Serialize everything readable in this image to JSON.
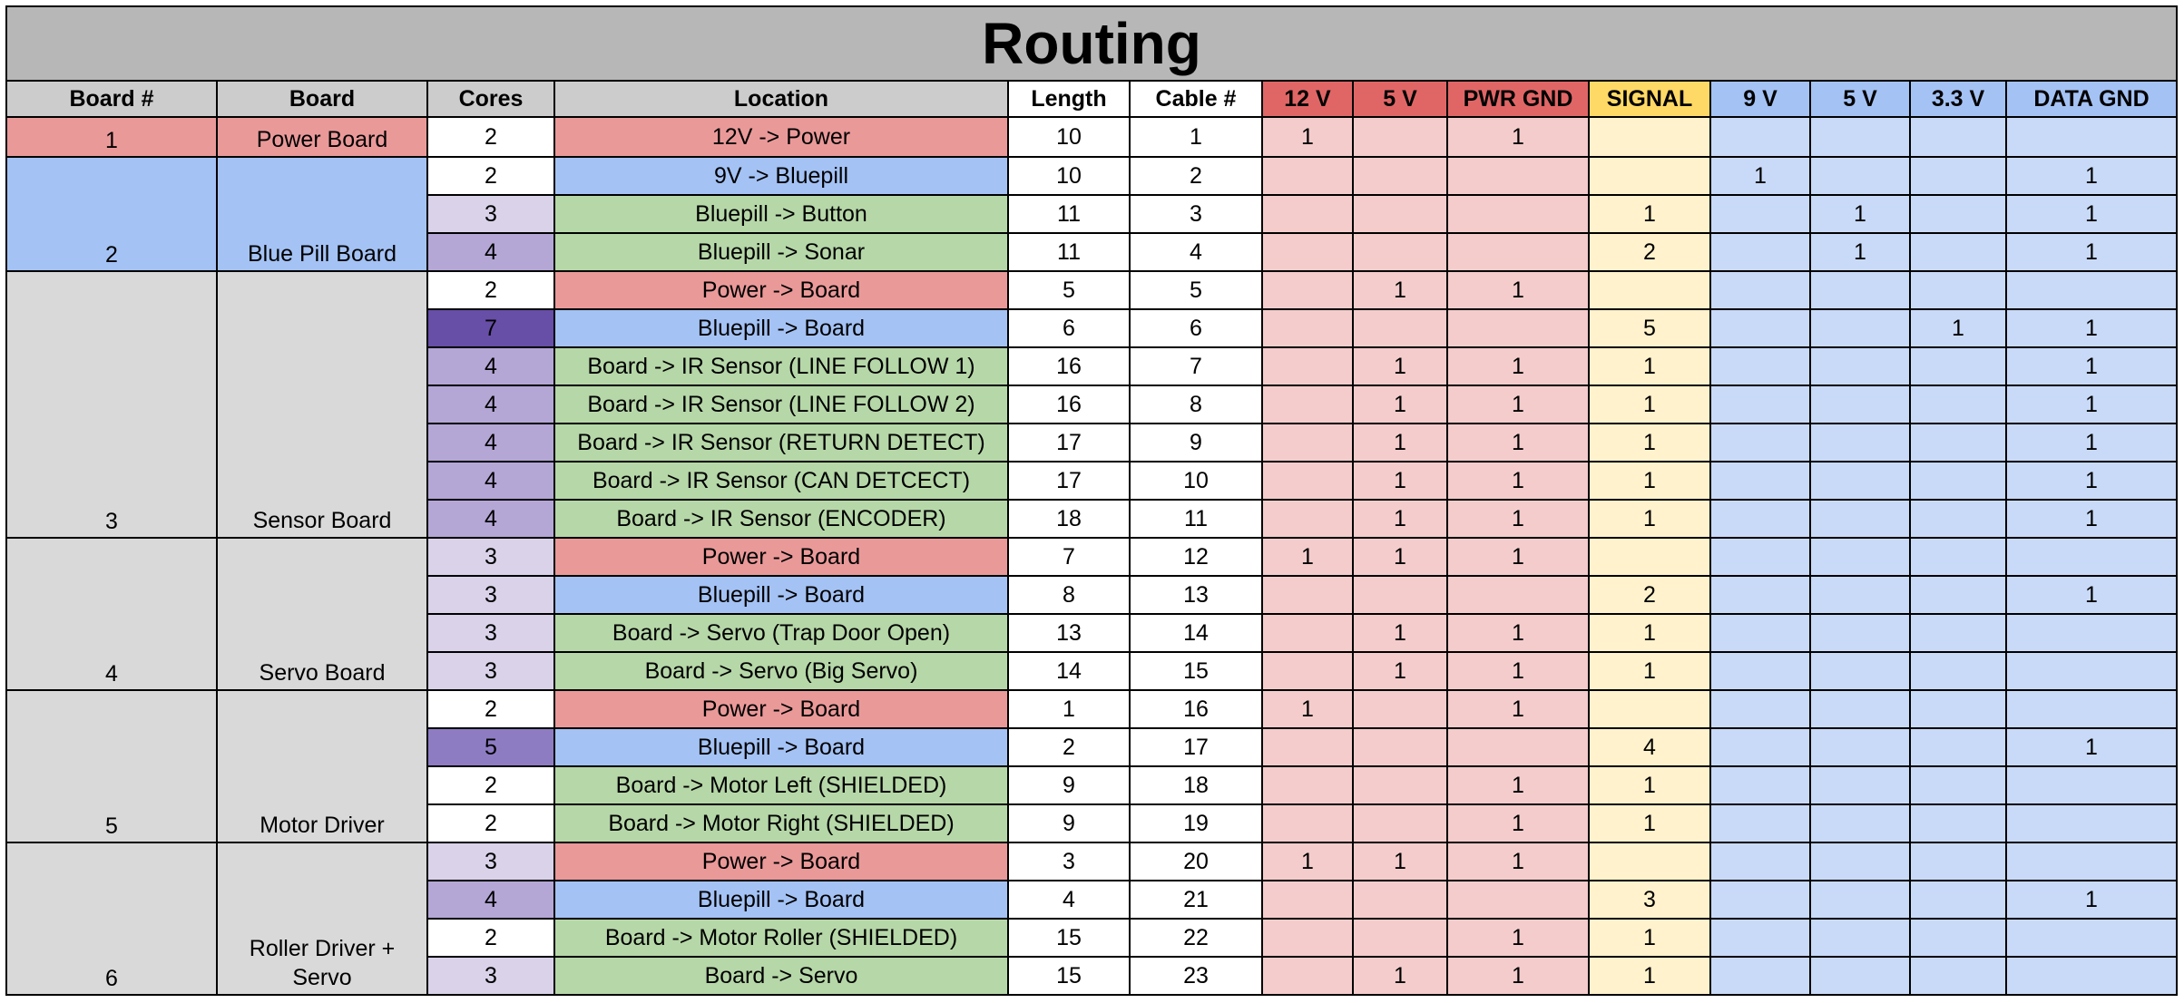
{
  "title": "Routing",
  "columns": [
    "Board #",
    "Board",
    "Cores",
    "Location",
    "Length",
    "Cable #",
    "12 V",
    "5 V",
    "PWR GND",
    "SIGNAL",
    "9 V",
    "5 V",
    "3.3 V",
    "DATA GND"
  ],
  "colors": {
    "power_red": "#ea9999",
    "bluepill_blue": "#a4c2f4",
    "signal_green": "#b6d7a8",
    "group_gray": "#d9d9d9",
    "power_header": "#e06666",
    "signal_header": "#ffd966",
    "data_header": "#a4c2f4",
    "power_cells": "#f4cccc",
    "signal_cells": "#fff2cc",
    "data_cells": "#c9daf8"
  },
  "groups": [
    {
      "board_num": "1",
      "board": "Power Board",
      "color": "#ea9999",
      "rows": [
        {
          "cores": "2",
          "cores_color": "#ffffff",
          "location": "12V -> Power",
          "loc_color": "#ea9999",
          "length": "10",
          "cable": "1",
          "v12": "1",
          "v5": "",
          "pwr_gnd": "1",
          "signal": "",
          "v9": "",
          "d5v": "",
          "v33": "",
          "data_gnd": ""
        }
      ]
    },
    {
      "board_num": "2",
      "board": "Blue Pill Board",
      "color": "#a4c2f4",
      "rows": [
        {
          "cores": "2",
          "cores_color": "#ffffff",
          "location": "9V -> Bluepill",
          "loc_color": "#a4c2f4",
          "length": "10",
          "cable": "2",
          "v12": "",
          "v5": "",
          "pwr_gnd": "",
          "signal": "",
          "v9": "1",
          "d5v": "",
          "v33": "",
          "data_gnd": "1"
        },
        {
          "cores": "3",
          "cores_color": "#d9d2e9",
          "location": "Bluepill -> Button",
          "loc_color": "#b6d7a8",
          "length": "11",
          "cable": "3",
          "v12": "",
          "v5": "",
          "pwr_gnd": "",
          "signal": "1",
          "v9": "",
          "d5v": "1",
          "v33": "",
          "data_gnd": "1"
        },
        {
          "cores": "4",
          "cores_color": "#b4a7d6",
          "location": "Bluepill -> Sonar",
          "loc_color": "#b6d7a8",
          "length": "11",
          "cable": "4",
          "v12": "",
          "v5": "",
          "pwr_gnd": "",
          "signal": "2",
          "v9": "",
          "d5v": "1",
          "v33": "",
          "data_gnd": "1"
        }
      ]
    },
    {
      "board_num": "3",
      "board": "Sensor Board",
      "color": "#d9d9d9",
      "rows": [
        {
          "cores": "2",
          "cores_color": "#ffffff",
          "location": "Power -> Board",
          "loc_color": "#ea9999",
          "length": "5",
          "cable": "5",
          "v12": "",
          "v5": "1",
          "pwr_gnd": "1",
          "signal": "",
          "v9": "",
          "d5v": "",
          "v33": "",
          "data_gnd": ""
        },
        {
          "cores": "7",
          "cores_color": "#674ea7",
          "location": "Bluepill -> Board",
          "loc_color": "#a4c2f4",
          "length": "6",
          "cable": "6",
          "v12": "",
          "v5": "",
          "pwr_gnd": "",
          "signal": "5",
          "v9": "",
          "d5v": "",
          "v33": "1",
          "data_gnd": "1"
        },
        {
          "cores": "4",
          "cores_color": "#b4a7d6",
          "location": "Board -> IR Sensor (LINE FOLLOW 1)",
          "loc_color": "#b6d7a8",
          "length": "16",
          "cable": "7",
          "v12": "",
          "v5": "1",
          "pwr_gnd": "1",
          "signal": "1",
          "v9": "",
          "d5v": "",
          "v33": "",
          "data_gnd": "1"
        },
        {
          "cores": "4",
          "cores_color": "#b4a7d6",
          "location": "Board -> IR Sensor (LINE FOLLOW 2)",
          "loc_color": "#b6d7a8",
          "length": "16",
          "cable": "8",
          "v12": "",
          "v5": "1",
          "pwr_gnd": "1",
          "signal": "1",
          "v9": "",
          "d5v": "",
          "v33": "",
          "data_gnd": "1"
        },
        {
          "cores": "4",
          "cores_color": "#b4a7d6",
          "location": "Board -> IR Sensor (RETURN DETECT)",
          "loc_color": "#b6d7a8",
          "length": "17",
          "cable": "9",
          "v12": "",
          "v5": "1",
          "pwr_gnd": "1",
          "signal": "1",
          "v9": "",
          "d5v": "",
          "v33": "",
          "data_gnd": "1"
        },
        {
          "cores": "4",
          "cores_color": "#b4a7d6",
          "location": "Board -> IR Sensor (CAN DETCECT)",
          "loc_color": "#b6d7a8",
          "length": "17",
          "cable": "10",
          "v12": "",
          "v5": "1",
          "pwr_gnd": "1",
          "signal": "1",
          "v9": "",
          "d5v": "",
          "v33": "",
          "data_gnd": "1"
        },
        {
          "cores": "4",
          "cores_color": "#b4a7d6",
          "location": "Board -> IR Sensor  (ENCODER)",
          "loc_color": "#b6d7a8",
          "length": "18",
          "cable": "11",
          "v12": "",
          "v5": "1",
          "pwr_gnd": "1",
          "signal": "1",
          "v9": "",
          "d5v": "",
          "v33": "",
          "data_gnd": "1"
        }
      ]
    },
    {
      "board_num": "4",
      "board": "Servo Board",
      "color": "#d9d9d9",
      "rows": [
        {
          "cores": "3",
          "cores_color": "#d9d2e9",
          "location": "Power -> Board",
          "loc_color": "#ea9999",
          "length": "7",
          "cable": "12",
          "v12": "1",
          "v5": "1",
          "pwr_gnd": "1",
          "signal": "",
          "v9": "",
          "d5v": "",
          "v33": "",
          "data_gnd": ""
        },
        {
          "cores": "3",
          "cores_color": "#d9d2e9",
          "location": "Bluepill -> Board",
          "loc_color": "#a4c2f4",
          "length": "8",
          "cable": "13",
          "v12": "",
          "v5": "",
          "pwr_gnd": "",
          "signal": "2",
          "v9": "",
          "d5v": "",
          "v33": "",
          "data_gnd": "1"
        },
        {
          "cores": "3",
          "cores_color": "#d9d2e9",
          "location": "Board -> Servo (Trap Door Open)",
          "loc_color": "#b6d7a8",
          "length": "13",
          "cable": "14",
          "v12": "",
          "v5": "1",
          "pwr_gnd": "1",
          "signal": "1",
          "v9": "",
          "d5v": "",
          "v33": "",
          "data_gnd": ""
        },
        {
          "cores": "3",
          "cores_color": "#d9d2e9",
          "location": "Board -> Servo (Big Servo)",
          "loc_color": "#b6d7a8",
          "length": "14",
          "cable": "15",
          "v12": "",
          "v5": "1",
          "pwr_gnd": "1",
          "signal": "1",
          "v9": "",
          "d5v": "",
          "v33": "",
          "data_gnd": ""
        }
      ]
    },
    {
      "board_num": "5",
      "board": "Motor Driver",
      "color": "#d9d9d9",
      "rows": [
        {
          "cores": "2",
          "cores_color": "#ffffff",
          "location": "Power -> Board",
          "loc_color": "#ea9999",
          "length": "1",
          "cable": "16",
          "v12": "1",
          "v5": "",
          "pwr_gnd": "1",
          "signal": "",
          "v9": "",
          "d5v": "",
          "v33": "",
          "data_gnd": ""
        },
        {
          "cores": "5",
          "cores_color": "#8e7cc3",
          "location": "Bluepill -> Board",
          "loc_color": "#a4c2f4",
          "length": "2",
          "cable": "17",
          "v12": "",
          "v5": "",
          "pwr_gnd": "",
          "signal": "4",
          "v9": "",
          "d5v": "",
          "v33": "",
          "data_gnd": "1"
        },
        {
          "cores": "2",
          "cores_color": "#ffffff",
          "location": "Board -> Motor Left (SHIELDED)",
          "loc_color": "#b6d7a8",
          "length": "9",
          "cable": "18",
          "v12": "",
          "v5": "",
          "pwr_gnd": "1",
          "signal": "1",
          "v9": "",
          "d5v": "",
          "v33": "",
          "data_gnd": ""
        },
        {
          "cores": "2",
          "cores_color": "#ffffff",
          "location": "Board -> Motor Right (SHIELDED)",
          "loc_color": "#b6d7a8",
          "length": "9",
          "cable": "19",
          "v12": "",
          "v5": "",
          "pwr_gnd": "1",
          "signal": "1",
          "v9": "",
          "d5v": "",
          "v33": "",
          "data_gnd": ""
        }
      ]
    },
    {
      "board_num": "6",
      "board": "Roller Driver + Servo",
      "color": "#d9d9d9",
      "rows": [
        {
          "cores": "3",
          "cores_color": "#d9d2e9",
          "location": "Power -> Board",
          "loc_color": "#ea9999",
          "length": "3",
          "cable": "20",
          "v12": "1",
          "v5": "1",
          "pwr_gnd": "1",
          "signal": "",
          "v9": "",
          "d5v": "",
          "v33": "",
          "data_gnd": ""
        },
        {
          "cores": "4",
          "cores_color": "#b4a7d6",
          "location": "Bluepill -> Board",
          "loc_color": "#a4c2f4",
          "length": "4",
          "cable": "21",
          "v12": "",
          "v5": "",
          "pwr_gnd": "",
          "signal": "3",
          "v9": "",
          "d5v": "",
          "v33": "",
          "data_gnd": "1"
        },
        {
          "cores": "2",
          "cores_color": "#ffffff",
          "location": "Board -> Motor Roller (SHIELDED)",
          "loc_color": "#b6d7a8",
          "length": "15",
          "cable": "22",
          "v12": "",
          "v5": "",
          "pwr_gnd": "1",
          "signal": "1",
          "v9": "",
          "d5v": "",
          "v33": "",
          "data_gnd": ""
        },
        {
          "cores": "3",
          "cores_color": "#d9d2e9",
          "location": "Board -> Servo",
          "loc_color": "#b6d7a8",
          "length": "15",
          "cable": "23",
          "v12": "",
          "v5": "1",
          "pwr_gnd": "1",
          "signal": "1",
          "v9": "",
          "d5v": "",
          "v33": "",
          "data_gnd": ""
        }
      ]
    }
  ]
}
